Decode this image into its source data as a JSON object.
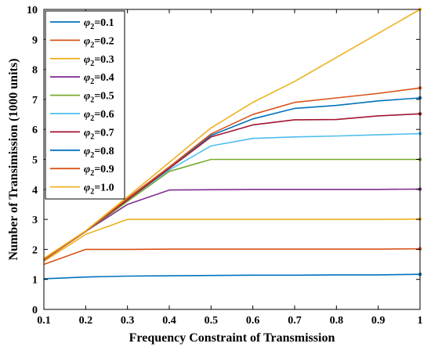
{
  "chart_data": {
    "type": "line",
    "title": "",
    "xlabel": "Frequency Constraint of Transmission",
    "ylabel": "Number of Transimission (1000 units)",
    "xlim": [
      0.1,
      1
    ],
    "ylim": [
      0,
      10
    ],
    "x_ticks": [
      "0.1",
      "0.2",
      "0.3",
      "0.4",
      "0.5",
      "0.6",
      "0.7",
      "0.8",
      "0.9",
      "1"
    ],
    "y_ticks": [
      "0",
      "1",
      "2",
      "3",
      "4",
      "5",
      "6",
      "7",
      "8",
      "9",
      "10"
    ],
    "grid": false,
    "legend_position": "top-left",
    "x": [
      0.1,
      0.2,
      0.3,
      0.4,
      0.5,
      0.6,
      0.7,
      0.8,
      0.9,
      1.0
    ],
    "series": [
      {
        "name": "φ2=0.1",
        "label_prefix": "φ",
        "label_sub": "2",
        "label_suffix": "=0.1",
        "color": "#0072BD",
        "values": [
          1.02,
          1.08,
          1.11,
          1.12,
          1.13,
          1.14,
          1.14,
          1.15,
          1.15,
          1.17
        ]
      },
      {
        "name": "φ2=0.2",
        "label_prefix": "φ",
        "label_sub": "2",
        "label_suffix": "=0.2",
        "color": "#D95319",
        "values": [
          1.5,
          2.0,
          2.0,
          2.01,
          2.01,
          2.01,
          2.01,
          2.01,
          2.01,
          2.02
        ]
      },
      {
        "name": "φ2=0.3",
        "label_prefix": "φ",
        "label_sub": "2",
        "label_suffix": "=0.3",
        "color": "#EDB120",
        "values": [
          1.6,
          2.5,
          3.0,
          3.0,
          3.0,
          3.0,
          3.0,
          3.0,
          3.0,
          3.01
        ]
      },
      {
        "name": "φ2=0.4",
        "label_prefix": "φ",
        "label_sub": "2",
        "label_suffix": "=0.4",
        "color": "#7E2F8E",
        "values": [
          1.65,
          2.6,
          3.5,
          3.98,
          3.99,
          4.0,
          4.0,
          4.0,
          4.0,
          4.01
        ]
      },
      {
        "name": "φ2=0.5",
        "label_prefix": "φ",
        "label_sub": "2",
        "label_suffix": "=0.5",
        "color": "#77AC30",
        "values": [
          1.65,
          2.6,
          3.6,
          4.6,
          5.0,
          5.0,
          5.0,
          5.0,
          5.0,
          5.0
        ]
      },
      {
        "name": "φ2=0.6",
        "label_prefix": "φ",
        "label_sub": "2",
        "label_suffix": "=0.6",
        "color": "#4DBEEE",
        "values": [
          1.65,
          2.6,
          3.65,
          4.65,
          5.45,
          5.7,
          5.75,
          5.78,
          5.82,
          5.86
        ]
      },
      {
        "name": "φ2=0.7",
        "label_prefix": "φ",
        "label_sub": "2",
        "label_suffix": "=0.7",
        "color": "#A2142F",
        "values": [
          1.65,
          2.6,
          3.65,
          4.7,
          5.75,
          6.15,
          6.32,
          6.33,
          6.45,
          6.52
        ]
      },
      {
        "name": "φ2=0.8",
        "label_prefix": "φ",
        "label_sub": "2",
        "label_suffix": "=0.8",
        "color": "#0072BD",
        "values": [
          1.65,
          2.6,
          3.7,
          4.75,
          5.8,
          6.35,
          6.7,
          6.8,
          6.95,
          7.05
        ]
      },
      {
        "name": "φ2=0.9",
        "label_prefix": "φ",
        "label_sub": "2",
        "label_suffix": "=0.9",
        "color": "#D95319",
        "values": [
          1.65,
          2.6,
          3.7,
          4.75,
          5.85,
          6.5,
          6.9,
          7.05,
          7.2,
          7.38
        ]
      },
      {
        "name": "φ2=1.0",
        "label_prefix": "φ",
        "label_sub": "2",
        "label_suffix": "=1.0",
        "color": "#EDB120",
        "values": [
          1.7,
          2.62,
          3.75,
          4.9,
          6.05,
          6.9,
          7.6,
          8.4,
          9.2,
          10.0
        ]
      }
    ]
  }
}
